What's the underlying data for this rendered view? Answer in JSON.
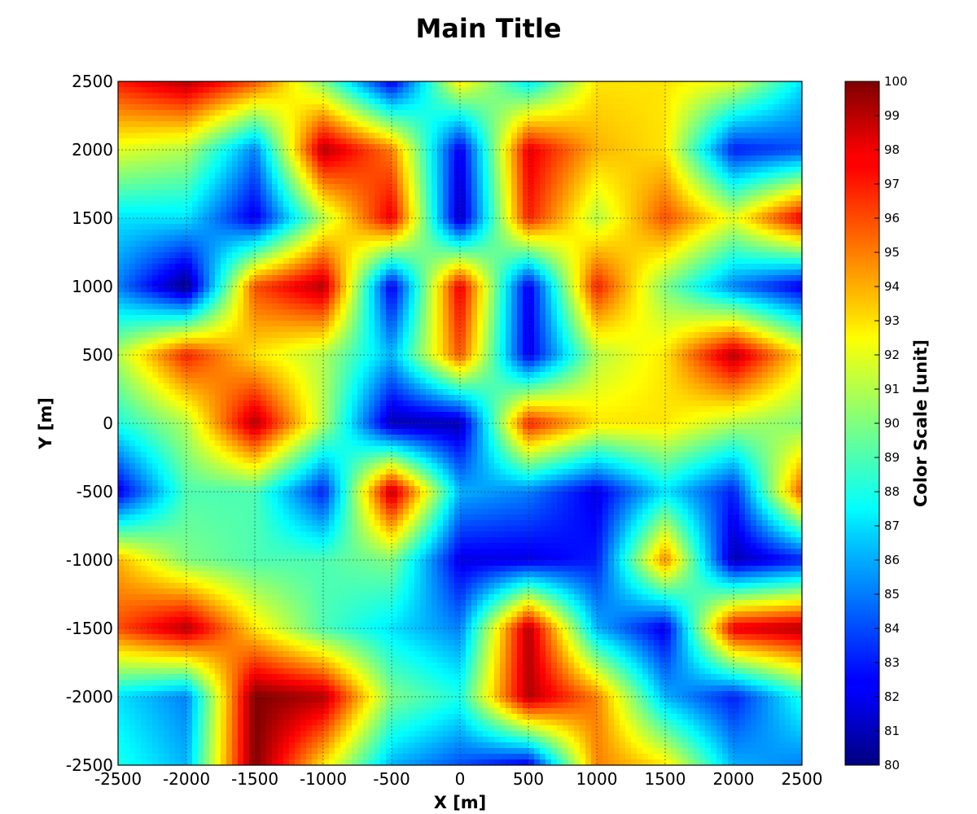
{
  "chart_data": {
    "type": "heatmap",
    "title": "Main Title",
    "xlabel": "X [m]",
    "ylabel": "Y [m]",
    "colorbar_label": "Color Scale [unit]",
    "colormap": "jet",
    "grid": true,
    "xlim": [
      -2500,
      2500
    ],
    "ylim": [
      -2500,
      2500
    ],
    "clim": [
      80,
      100
    ],
    "x": [
      -2500,
      -2000,
      -1500,
      -1000,
      -500,
      0,
      500,
      1000,
      1500,
      2000,
      2500
    ],
    "y": [
      2500,
      2000,
      1500,
      1000,
      500,
      0,
      -500,
      -1000,
      -1500,
      -2000,
      -2500
    ],
    "x_tick_labels": [
      "-2500",
      "-2000",
      "-1500",
      "-1000",
      "-500",
      "0",
      "500",
      "1000",
      "1500",
      "2000",
      "2500"
    ],
    "y_tick_labels": [
      "2500",
      "2000",
      "1500",
      "1000",
      "500",
      "0",
      "-500",
      "-1000",
      "-1500",
      "-2000",
      "-2500"
    ],
    "colorbar_ticks": [
      "100",
      "99",
      "98",
      "97",
      "96",
      "95",
      "94",
      "93",
      "92",
      "91",
      "90",
      "89",
      "88",
      "87",
      "86",
      "85",
      "84",
      "83",
      "82",
      "81",
      "80"
    ],
    "z": [
      [
        97,
        99,
        96,
        90,
        82,
        93,
        87,
        93,
        93,
        92,
        87
      ],
      [
        92,
        91,
        85,
        99,
        95,
        82,
        98,
        94,
        93,
        83,
        84
      ],
      [
        87,
        87,
        82,
        91,
        98,
        81,
        97,
        91,
        96,
        92,
        98
      ],
      [
        85,
        80,
        96,
        99,
        82,
        98,
        82,
        97,
        90,
        85,
        82
      ],
      [
        91,
        97,
        93,
        91,
        86,
        96,
        82,
        91,
        93,
        99,
        93
      ],
      [
        88,
        91,
        99,
        91,
        81,
        81,
        97,
        93,
        93,
        91,
        90
      ],
      [
        82,
        89,
        89,
        83,
        99,
        86,
        85,
        82,
        87,
        83,
        96
      ],
      [
        94,
        90,
        89,
        89,
        90,
        82,
        82,
        83,
        95,
        81,
        83
      ],
      [
        96,
        99,
        93,
        89,
        87,
        85,
        99,
        86,
        82,
        98,
        99
      ],
      [
        87,
        85,
        100,
        99,
        90,
        88,
        99,
        95,
        86,
        83,
        88
      ],
      [
        88,
        86,
        100,
        93,
        86,
        84,
        82,
        95,
        93,
        86,
        85
      ]
    ]
  }
}
